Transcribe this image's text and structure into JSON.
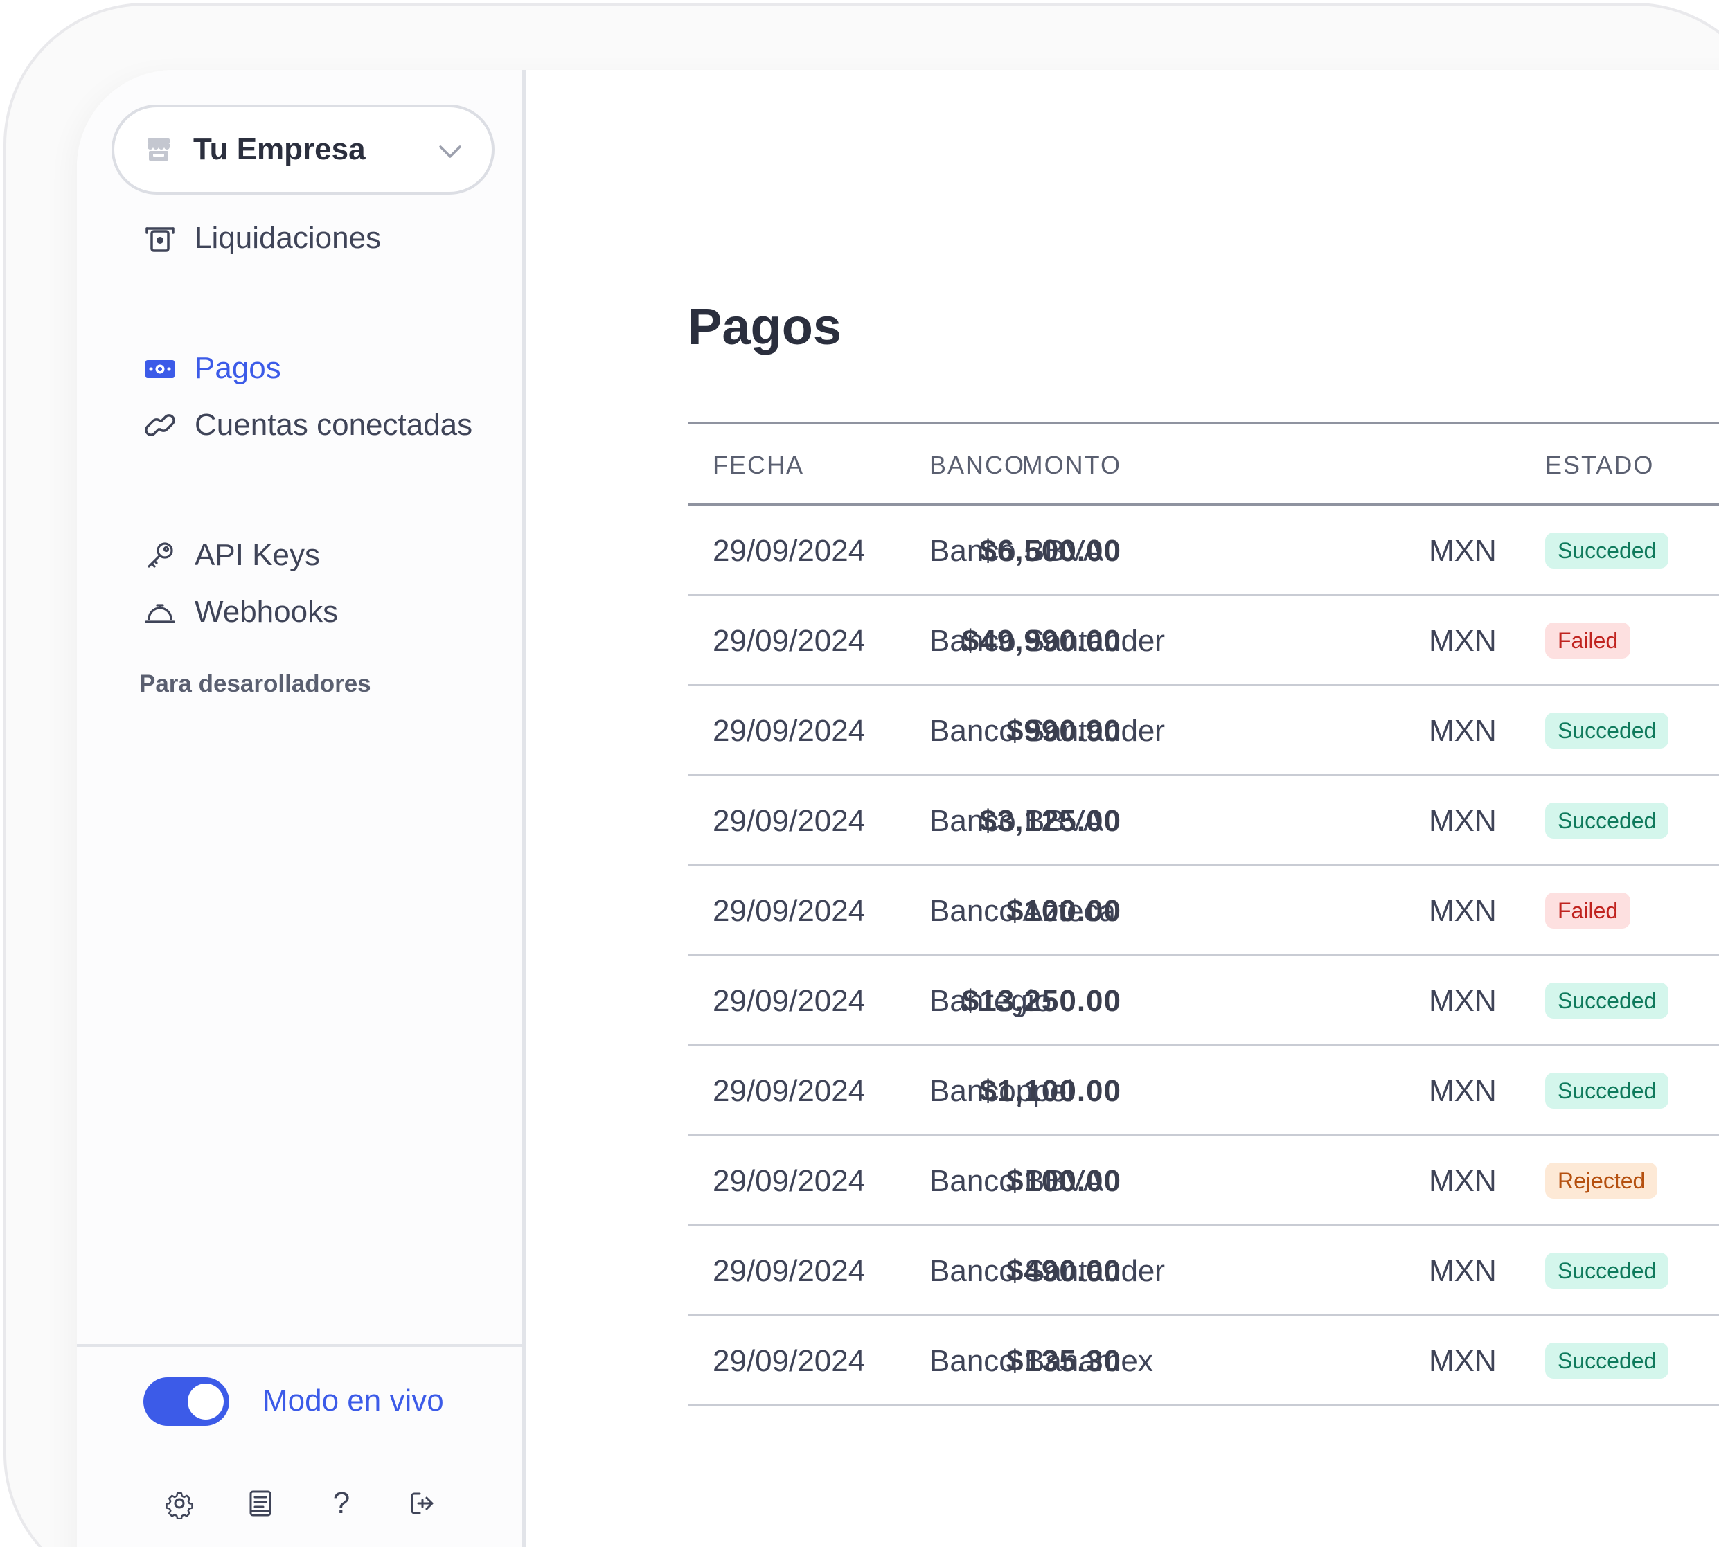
{
  "company": {
    "name": "Tu Empresa",
    "icon": "store-icon"
  },
  "nav": {
    "liquidaciones": "Liquidaciones",
    "pagos": "Pagos",
    "cuentas": "Cuentas conectadas",
    "dev_section": "Para desarolladores",
    "api_keys": "API Keys",
    "webhooks": "Webhooks"
  },
  "footer": {
    "live_mode_label": "Modo en vivo",
    "live_mode_on": true,
    "icons": [
      "gear-icon",
      "docs-icon",
      "help-icon",
      "logout-icon"
    ],
    "help_glyph": "?"
  },
  "page": {
    "title": "Pagos"
  },
  "table": {
    "headers": {
      "fecha": "FECHA",
      "banco": "BANCO",
      "monto": "MONTO",
      "estado": "ESTADO"
    },
    "rows": [
      {
        "fecha": "29/09/2024",
        "banco": "Banco BBVA",
        "monto": "$6,500.00",
        "moneda": "MXN",
        "estado": "Succeded"
      },
      {
        "fecha": "29/09/2024",
        "banco": "Banco Santander",
        "monto": "$49,990.00",
        "moneda": "MXN",
        "estado": "Failed"
      },
      {
        "fecha": "29/09/2024",
        "banco": "Banco Santander",
        "monto": "$990.90",
        "moneda": "MXN",
        "estado": "Succeded"
      },
      {
        "fecha": "29/09/2024",
        "banco": "Banco BBVA",
        "monto": "$3,125.00",
        "moneda": "MXN",
        "estado": "Succeded"
      },
      {
        "fecha": "29/09/2024",
        "banco": "Banco Azteca",
        "monto": "$100.00",
        "moneda": "MXN",
        "estado": "Failed"
      },
      {
        "fecha": "29/09/2024",
        "banco": "Banregio",
        "monto": "$13,250.00",
        "moneda": "MXN",
        "estado": "Succeded"
      },
      {
        "fecha": "29/09/2024",
        "banco": "Bancoppel",
        "monto": "$1,100.00",
        "moneda": "MXN",
        "estado": "Succeded"
      },
      {
        "fecha": "29/09/2024",
        "banco": "Banco BBVA",
        "monto": "$100.00",
        "moneda": "MXN",
        "estado": "Rejected"
      },
      {
        "fecha": "29/09/2024",
        "banco": "Banco Santander",
        "monto": "$490.00",
        "moneda": "MXN",
        "estado": "Succeded"
      },
      {
        "fecha": "29/09/2024",
        "banco": "Banco Banamex",
        "monto": "$135.30",
        "moneda": "MXN",
        "estado": "Succeded"
      }
    ]
  },
  "colors": {
    "accent": "#3c5be8",
    "succeded_bg": "#d4f6ec",
    "failed_bg": "#fde0e0",
    "rejected_bg": "#fde9d6"
  }
}
